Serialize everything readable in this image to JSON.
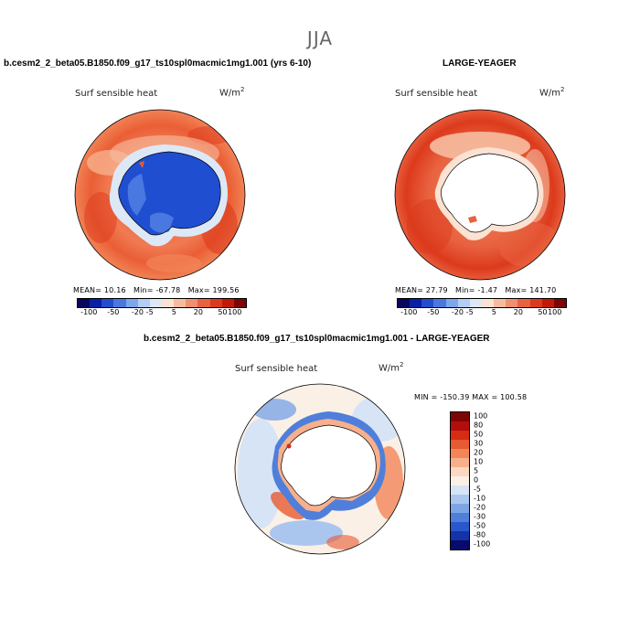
{
  "figure": {
    "season_title": "JJA"
  },
  "panels": {
    "case": {
      "title": "b.cesm2_2_beta05.B1850.f09_g17_ts10spl0macmic1mg1.001 (yrs 6-10)",
      "variable": "Surf sensible heat",
      "units": "W/m",
      "units_sup": "2",
      "mean_label": "MEAN=",
      "mean": "10.16",
      "min_label": "Min=",
      "min": "-67.78",
      "max_label": "Max=",
      "max": "199.56"
    },
    "obs": {
      "title": "LARGE-YEAGER",
      "variable": "Surf sensible heat",
      "units": "W/m",
      "units_sup": "2",
      "mean_label": "MEAN=",
      "mean": "27.79",
      "min_label": "Min=",
      "min": "-1.47",
      "max_label": "Max=",
      "max": "141.70"
    },
    "diff": {
      "title": "b.cesm2_2_beta05.B1850.f09_g17_ts10spl0macmic1mg1.001 - LARGE-YEAGER",
      "variable": "Surf sensible heat",
      "units": "W/m",
      "units_sup": "2",
      "minmax_text": "MIN = -150.39  MAX = 100.58"
    }
  },
  "colorbar_top": {
    "colors": [
      "#08085e",
      "#0a1fa3",
      "#1f4ed1",
      "#4878e0",
      "#7ea6ec",
      "#b5cdf2",
      "#dde8f7",
      "#fbe2d2",
      "#f6bca0",
      "#f09070",
      "#e86240",
      "#dc3a1c",
      "#c01a0c",
      "#7e0505"
    ],
    "ticks": [
      "-100",
      "-50",
      "-20",
      "-5",
      "5",
      "20",
      "50",
      "100"
    ]
  },
  "colorbar_diff": {
    "colors": [
      "#7e0505",
      "#b40e0c",
      "#d52c13",
      "#e85a32",
      "#f28659",
      "#f7b08c",
      "#fbd8c2",
      "#fbf0e6",
      "#d6e4f6",
      "#aac6ef",
      "#7da5e6",
      "#4f7fdb",
      "#2a57cc",
      "#1532a8",
      "#080b6b"
    ],
    "ticks": [
      "100",
      "80",
      "50",
      "30",
      "20",
      "10",
      "5",
      "0",
      "-5",
      "-10",
      "-20",
      "-30",
      "-50",
      "-80",
      "-100"
    ]
  }
}
